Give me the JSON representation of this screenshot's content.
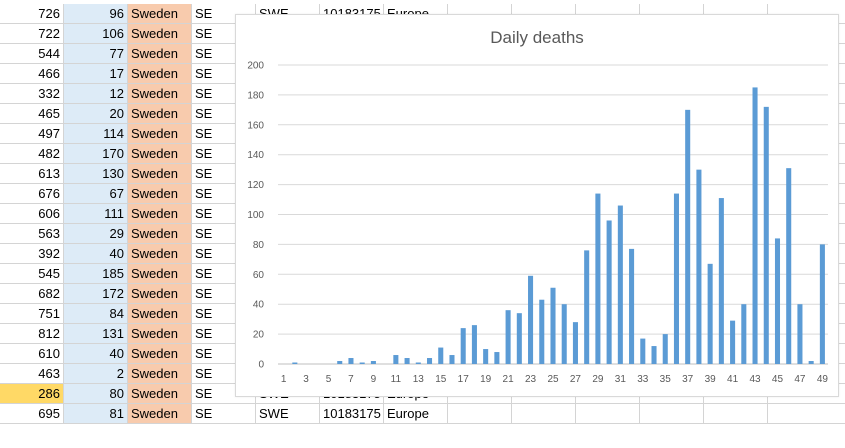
{
  "rows": [
    {
      "a": "726",
      "b": "96",
      "country": "Sweden",
      "code2": "SE",
      "code3": "SWE",
      "pop": "10183175",
      "region": "Europe"
    },
    {
      "a": "722",
      "b": "106",
      "country": "Sweden",
      "code2": "SE"
    },
    {
      "a": "544",
      "b": "77",
      "country": "Sweden",
      "code2": "SE"
    },
    {
      "a": "466",
      "b": "17",
      "country": "Sweden",
      "code2": "SE"
    },
    {
      "a": "332",
      "b": "12",
      "country": "Sweden",
      "code2": "SE"
    },
    {
      "a": "465",
      "b": "20",
      "country": "Sweden",
      "code2": "SE"
    },
    {
      "a": "497",
      "b": "114",
      "country": "Sweden",
      "code2": "SE"
    },
    {
      "a": "482",
      "b": "170",
      "country": "Sweden",
      "code2": "SE"
    },
    {
      "a": "613",
      "b": "130",
      "country": "Sweden",
      "code2": "SE"
    },
    {
      "a": "676",
      "b": "67",
      "country": "Sweden",
      "code2": "SE"
    },
    {
      "a": "606",
      "b": "111",
      "country": "Sweden",
      "code2": "SE"
    },
    {
      "a": "563",
      "b": "29",
      "country": "Sweden",
      "code2": "SE"
    },
    {
      "a": "392",
      "b": "40",
      "country": "Sweden",
      "code2": "SE"
    },
    {
      "a": "545",
      "b": "185",
      "country": "Sweden",
      "code2": "SE"
    },
    {
      "a": "682",
      "b": "172",
      "country": "Sweden",
      "code2": "SE"
    },
    {
      "a": "751",
      "b": "84",
      "country": "Sweden",
      "code2": "SE"
    },
    {
      "a": "812",
      "b": "131",
      "country": "Sweden",
      "code2": "SE"
    },
    {
      "a": "610",
      "b": "40",
      "country": "Sweden",
      "code2": "SE"
    },
    {
      "a": "463",
      "b": "2",
      "country": "Sweden",
      "code2": "SE"
    },
    {
      "a": "286",
      "b": "80",
      "country": "Sweden",
      "code2": "SE",
      "code3": "SWE",
      "pop": "10183175",
      "region": "Europe",
      "highlight": true
    },
    {
      "a": "695",
      "b": "81",
      "country": "Sweden",
      "code2": "SE",
      "code3": "SWE",
      "pop": "10183175",
      "region": "Europe"
    }
  ],
  "colors": {
    "bar": "#5b9bd5",
    "highlight": "#ffd966",
    "colB": "#ddebf7",
    "colC": "#f8cbad"
  },
  "chart_data": {
    "type": "bar",
    "title": "Daily deaths",
    "xlabel": "",
    "ylabel": "",
    "ylim": [
      0,
      200
    ],
    "yticks": [
      0,
      20,
      40,
      60,
      80,
      100,
      120,
      140,
      160,
      180,
      200
    ],
    "categories": [
      1,
      2,
      3,
      4,
      5,
      6,
      7,
      8,
      9,
      10,
      11,
      12,
      13,
      14,
      15,
      16,
      17,
      18,
      19,
      20,
      21,
      22,
      23,
      24,
      25,
      26,
      27,
      28,
      29,
      30,
      31,
      32,
      33,
      34,
      35,
      36,
      37,
      38,
      39,
      40,
      41,
      42,
      43,
      44,
      45,
      46,
      47,
      48,
      49
    ],
    "xtick_labels": [
      "1",
      "3",
      "5",
      "7",
      "9",
      "11",
      "13",
      "15",
      "17",
      "19",
      "21",
      "23",
      "25",
      "27",
      "29",
      "31",
      "33",
      "35",
      "37",
      "39",
      "41",
      "43",
      "45",
      "47",
      "49"
    ],
    "values": [
      0,
      1,
      0,
      0,
      0,
      2,
      4,
      1,
      2,
      0,
      6,
      4,
      1,
      4,
      11,
      6,
      24,
      26,
      10,
      8,
      36,
      34,
      59,
      43,
      51,
      40,
      28,
      76,
      114,
      96,
      106,
      77,
      17,
      12,
      20,
      114,
      170,
      130,
      67,
      111,
      29,
      40,
      185,
      172,
      84,
      131,
      40,
      2,
      80
    ],
    "grid": true,
    "legend": "none"
  }
}
